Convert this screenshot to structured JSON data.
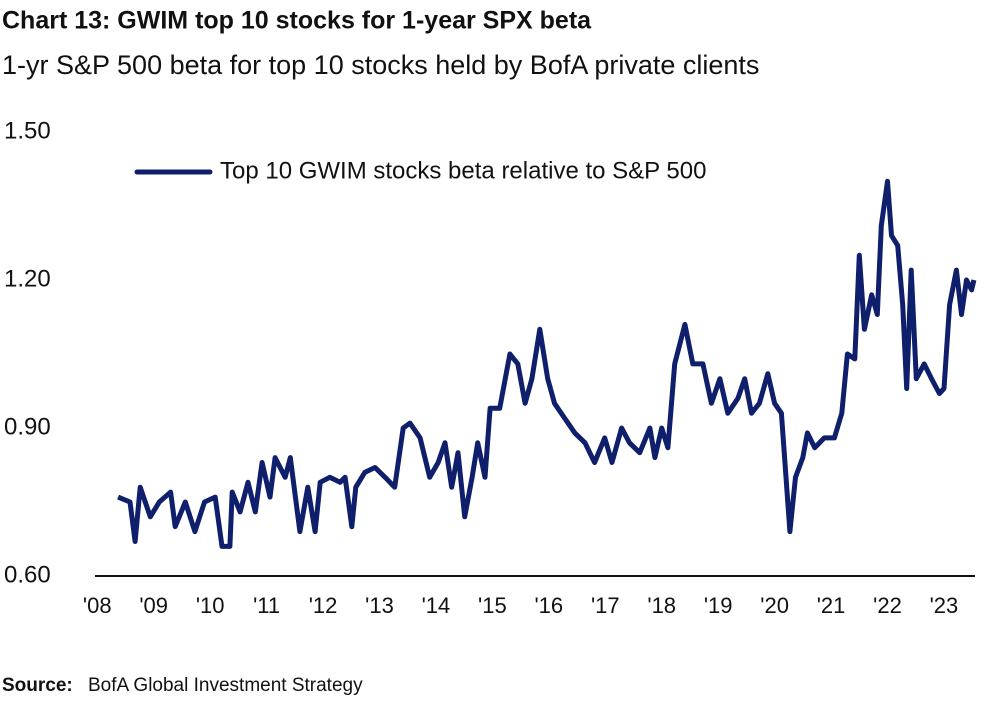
{
  "chart_data": {
    "type": "line",
    "title": "Chart 13: GWIM top 10 stocks for 1-year SPX beta",
    "subtitle": "1-yr S&P 500 beta for top 10 stocks held by BofA private clients",
    "source_label": "Source:",
    "source": "BofA Global Investment Strategy",
    "x": [
      2008.37,
      2008.58,
      2008.67,
      2008.76,
      2008.94,
      2009.1,
      2009.3,
      2009.38,
      2009.56,
      2009.73,
      2009.9,
      2010.09,
      2010.21,
      2010.35,
      2010.39,
      2010.53,
      2010.67,
      2010.8,
      2010.92,
      2011.06,
      2011.15,
      2011.33,
      2011.42,
      2011.59,
      2011.73,
      2011.86,
      2011.95,
      2012.12,
      2012.3,
      2012.39,
      2012.51,
      2012.58,
      2012.74,
      2012.92,
      2013.1,
      2013.27,
      2013.42,
      2013.54,
      2013.72,
      2013.89,
      2014.04,
      2014.16,
      2014.28,
      2014.39,
      2014.51,
      2014.64,
      2014.74,
      2014.87,
      2014.96,
      2015.13,
      2015.31,
      2015.45,
      2015.58,
      2015.7,
      2015.84,
      2015.98,
      2016.1,
      2016.28,
      2016.46,
      2016.64,
      2016.81,
      2016.99,
      2017.12,
      2017.29,
      2017.43,
      2017.61,
      2017.79,
      2017.88,
      2018.0,
      2018.11,
      2018.23,
      2018.41,
      2018.55,
      2018.73,
      2018.88,
      2019.03,
      2019.17,
      2019.35,
      2019.47,
      2019.59,
      2019.73,
      2019.88,
      2020.0,
      2020.12,
      2020.27,
      2020.37,
      2020.5,
      2020.58,
      2020.71,
      2020.88,
      2021.06,
      2021.19,
      2021.29,
      2021.42,
      2021.5,
      2021.59,
      2021.72,
      2021.82,
      2021.89,
      2022.0,
      2022.07,
      2022.18,
      2022.27,
      2022.34,
      2022.42,
      2022.51,
      2022.65,
      2022.78,
      2022.92,
      2023.0,
      2023.1,
      2023.22,
      2023.31,
      2023.4,
      2023.49,
      2023.53
    ],
    "series": [
      {
        "name": "Top 10 GWIM stocks beta relative to S&P 500",
        "color": "#0f1f6b",
        "values": [
          0.76,
          0.75,
          0.67,
          0.78,
          0.72,
          0.75,
          0.77,
          0.7,
          0.75,
          0.69,
          0.75,
          0.76,
          0.66,
          0.66,
          0.77,
          0.73,
          0.79,
          0.73,
          0.83,
          0.76,
          0.84,
          0.8,
          0.84,
          0.69,
          0.78,
          0.69,
          0.79,
          0.8,
          0.79,
          0.8,
          0.7,
          0.78,
          0.81,
          0.82,
          0.8,
          0.78,
          0.9,
          0.91,
          0.88,
          0.8,
          0.83,
          0.87,
          0.78,
          0.85,
          0.72,
          0.8,
          0.87,
          0.8,
          0.94,
          0.94,
          1.05,
          1.03,
          0.95,
          1.0,
          1.1,
          1.0,
          0.95,
          0.92,
          0.89,
          0.87,
          0.83,
          0.88,
          0.83,
          0.9,
          0.87,
          0.85,
          0.9,
          0.84,
          0.9,
          0.86,
          1.03,
          1.11,
          1.03,
          1.03,
          0.95,
          1.0,
          0.93,
          0.96,
          1.0,
          0.93,
          0.95,
          1.01,
          0.95,
          0.93,
          0.69,
          0.8,
          0.84,
          0.89,
          0.86,
          0.88,
          0.88,
          0.93,
          1.05,
          1.04,
          1.25,
          1.1,
          1.17,
          1.13,
          1.31,
          1.4,
          1.29,
          1.27,
          1.15,
          0.98,
          1.22,
          1.0,
          1.03,
          1.0,
          0.97,
          0.98,
          1.15,
          1.22,
          1.13,
          1.2,
          1.18,
          1.2
        ]
      }
    ],
    "xlim": [
      2007.96,
      2023.55
    ],
    "xticks": [
      {
        "value": 2008,
        "label": "'08"
      },
      {
        "value": 2009,
        "label": "'09"
      },
      {
        "value": 2010,
        "label": "'10"
      },
      {
        "value": 2011,
        "label": "'11"
      },
      {
        "value": 2012,
        "label": "'12"
      },
      {
        "value": 2013,
        "label": "'13"
      },
      {
        "value": 2014,
        "label": "'14"
      },
      {
        "value": 2015,
        "label": "'15"
      },
      {
        "value": 2016,
        "label": "'16"
      },
      {
        "value": 2017,
        "label": "'17"
      },
      {
        "value": 2018,
        "label": "'18"
      },
      {
        "value": 2019,
        "label": "'19"
      },
      {
        "value": 2020,
        "label": "'20"
      },
      {
        "value": 2021,
        "label": "'21"
      },
      {
        "value": 2022,
        "label": "'22"
      },
      {
        "value": 2023,
        "label": "'23"
      }
    ],
    "ylim": [
      0.6,
      1.5
    ],
    "yticks": [
      {
        "value": 0.6,
        "label": "0.60"
      },
      {
        "value": 0.9,
        "label": "0.90"
      },
      {
        "value": 1.2,
        "label": "1.20"
      },
      {
        "value": 1.5,
        "label": "1.50"
      }
    ],
    "grid": false,
    "legend": "top-left"
  }
}
